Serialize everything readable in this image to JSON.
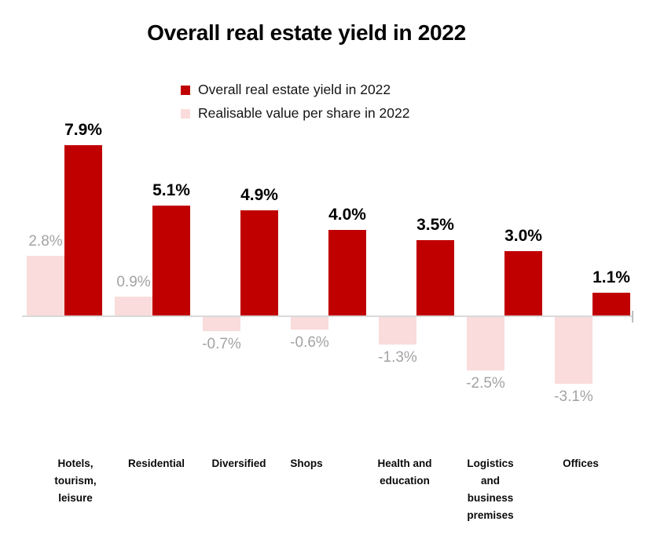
{
  "title": "Overall real estate yield in 2022",
  "legend": [
    {
      "label": "Overall real estate yield in 2022",
      "color": "#c00000"
    },
    {
      "label": "Realisable value per share in 2022",
      "color": "#f9dcdb"
    }
  ],
  "chart_data": {
    "type": "bar",
    "title": "Overall real estate yield in 2022",
    "categories": [
      "Hotels, tourism, leisure",
      "Residential",
      "Diversified",
      "Shops",
      "Health and education",
      "Logistics and business premises",
      "Offices"
    ],
    "category_lines": [
      [
        "Hotels,",
        "tourism,",
        "leisure"
      ],
      [
        "Residential"
      ],
      [
        "Diversified"
      ],
      [
        "Shops"
      ],
      [
        "Health and",
        "education"
      ],
      [
        "Logistics",
        "and",
        "business",
        "premises"
      ],
      [
        "Offices"
      ]
    ],
    "series": [
      {
        "name": "Overall real estate yield in 2022",
        "color": "#c00000",
        "values": [
          7.9,
          5.1,
          4.9,
          4.0,
          3.5,
          3.0,
          1.1
        ],
        "labels": [
          "7.9%",
          "5.1%",
          "4.9%",
          "4.0%",
          "3.5%",
          "3.0%",
          "1.1%"
        ],
        "label_color": "#000000"
      },
      {
        "name": "Realisable value per share in 2022",
        "color": "#f9dcdb",
        "values": [
          2.8,
          0.9,
          -0.7,
          -0.6,
          -1.3,
          -2.5,
          -3.1
        ],
        "labels": [
          "2.8%",
          "0.9%",
          "-0.7%",
          "-0.6%",
          "-1.3%",
          "-2.5%",
          "-3.1%"
        ],
        "label_color": "#a3a3a3"
      }
    ],
    "ylim": [
      -3.5,
      8.5
    ],
    "xlabel": "",
    "ylabel": "",
    "grid": false,
    "legend_position": "top-center",
    "axis_color": "#d9d9d9"
  }
}
